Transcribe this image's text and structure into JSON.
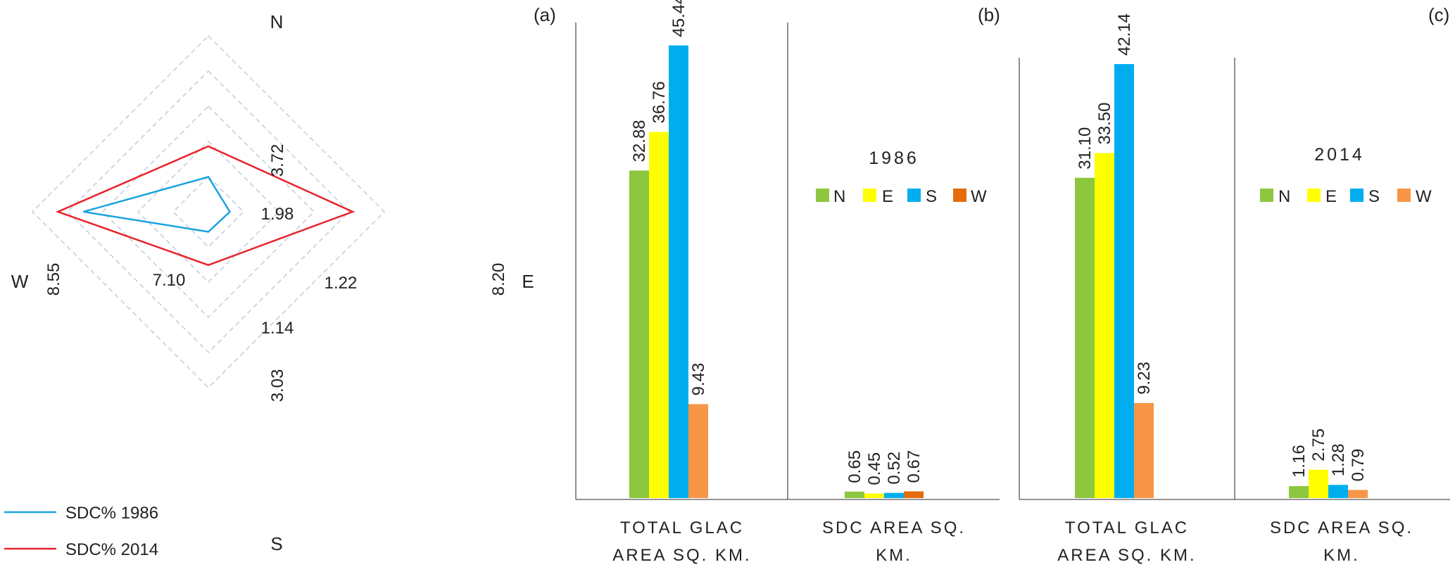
{
  "colors": {
    "N": "#8dc63f",
    "E": "#ffff00",
    "S": "#00aeef",
    "W_1986": "#e46c0a",
    "W_2014": "#f79646",
    "sdc1986": "#1aa3e0",
    "sdc2014": "#e8222a",
    "grid": "#c5cfe0",
    "axis": "#555555"
  },
  "chart_data": [
    {
      "type": "radar",
      "directions": [
        "N",
        "E",
        "S",
        "W"
      ],
      "rmax": 10,
      "grid_levels": [
        2,
        4,
        6,
        8,
        10
      ],
      "series": [
        {
          "name": "SDC% 1986",
          "values": [
            1.98,
            1.22,
            1.14,
            7.1
          ],
          "labels": [
            "1.98",
            "1.22",
            "1.14",
            "7.10"
          ]
        },
        {
          "name": "SDC% 2014",
          "values": [
            3.72,
            8.2,
            3.03,
            8.55
          ],
          "labels": [
            "3.72",
            "8.20",
            "3.03",
            "8.55"
          ]
        }
      ],
      "legend": [
        "SDC% 1986",
        "SDC% 2014"
      ]
    },
    {
      "type": "bar",
      "panels": [
        "(a)",
        "(b)"
      ],
      "year": "1986",
      "ylim": [
        0,
        50
      ],
      "categories": [
        "TOTAL GLAC AREA SQ. KM.",
        "SDC AREA SQ. KM."
      ],
      "category_lines": [
        [
          "TOTAL GLAC",
          "AREA SQ. KM."
        ],
        [
          "SDC AREA SQ.",
          "KM."
        ]
      ],
      "legend": [
        "N",
        "E",
        "S",
        "W"
      ],
      "series": [
        {
          "name": "N",
          "values": [
            32.88,
            0.65
          ],
          "labels": [
            "32.88",
            "0.65"
          ]
        },
        {
          "name": "E",
          "values": [
            36.76,
            0.45
          ],
          "labels": [
            "36.76",
            "0.45"
          ]
        },
        {
          "name": "S",
          "values": [
            45.44,
            0.52
          ],
          "labels": [
            "45.44",
            "0.52"
          ]
        },
        {
          "name": "W",
          "values": [
            9.43,
            0.67
          ],
          "labels": [
            "9.43",
            "0.67"
          ]
        }
      ]
    },
    {
      "type": "bar",
      "panels": [
        "(c)"
      ],
      "year": "2014",
      "ylim": [
        0,
        50
      ],
      "categories": [
        "TOTAL GLAC AREA SQ. KM.",
        "SDC AREA SQ. KM."
      ],
      "category_lines": [
        [
          "TOTAL GLAC",
          "AREA SQ. KM."
        ],
        [
          "SDC AREA SQ.",
          "KM."
        ]
      ],
      "legend": [
        "N",
        "E",
        "S",
        "W"
      ],
      "series": [
        {
          "name": "N",
          "values": [
            31.1,
            1.16
          ],
          "labels": [
            "31.10",
            "1.16"
          ]
        },
        {
          "name": "E",
          "values": [
            33.5,
            2.75
          ],
          "labels": [
            "33.50",
            "2.75"
          ]
        },
        {
          "name": "S",
          "values": [
            42.14,
            1.28
          ],
          "labels": [
            "42.14",
            "1.28"
          ]
        },
        {
          "name": "W",
          "values": [
            9.23,
            0.79
          ],
          "labels": [
            "9.23",
            "0.79"
          ]
        }
      ]
    }
  ]
}
